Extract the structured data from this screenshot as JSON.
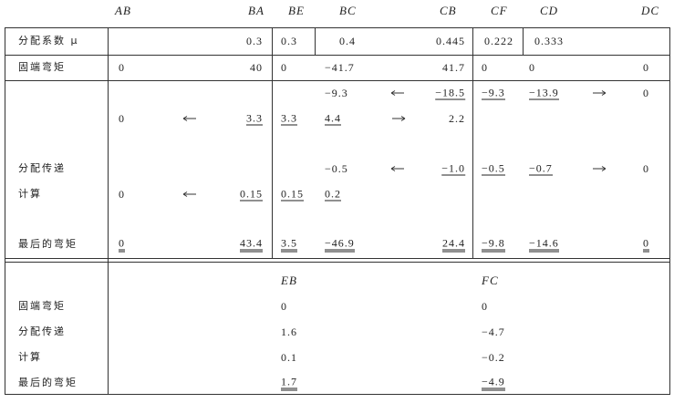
{
  "header": {
    "columns": [
      "AB",
      "BA",
      "BE",
      "BC",
      "CB",
      "CF",
      "CD",
      "DC"
    ]
  },
  "top_table": {
    "labels": {
      "factors": "分配系数 μ",
      "fixed": "固端弯矩",
      "distribution": "分配传递",
      "calculation": "计算",
      "final": "最后的弯矩"
    },
    "factors": {
      "BA": "0.3",
      "BE": "0.3",
      "BC": "0.4",
      "CB": "0.445",
      "CF": "0.222",
      "CD": "0.333"
    },
    "fixed_end": {
      "AB": "0",
      "BA": "40",
      "BE": "0",
      "BC": "−41.7",
      "CB": "41.7",
      "CF": "0",
      "CD": "0",
      "DC": "0"
    },
    "steps": [
      {
        "BC": "−9.3",
        "CB": "−18.5",
        "CF": "−9.3",
        "CD": "−13.9",
        "DC": "0"
      },
      {
        "AB": "0",
        "BA": "3.3",
        "BE": "3.3",
        "BC": "4.4",
        "CB": "2.2"
      },
      {
        "BC": "−0.5",
        "CB": "−1.0",
        "CF": "−0.5",
        "CD": "−0.7",
        "DC": "0"
      },
      {
        "AB": "0",
        "BA": "0.15",
        "BE": "0.15",
        "BC": "0.2"
      }
    ],
    "final": {
      "AB": "0",
      "BA": "43.4",
      "BE": "3.5",
      "BC": "−46.9",
      "CB": "24.4",
      "CF": "−9.8",
      "CD": "−14.6",
      "DC": "0"
    }
  },
  "bottom_table": {
    "labels": [
      "固端弯矩",
      "分配传递",
      "计算",
      "最后的弯矩"
    ],
    "EB": {
      "heading": "EB",
      "values": [
        "0",
        "1.6",
        "0.1",
        "1.7"
      ]
    },
    "FC": {
      "heading": "FC",
      "values": [
        "0",
        "−4.7",
        "−0.2",
        "−4.9"
      ]
    }
  }
}
